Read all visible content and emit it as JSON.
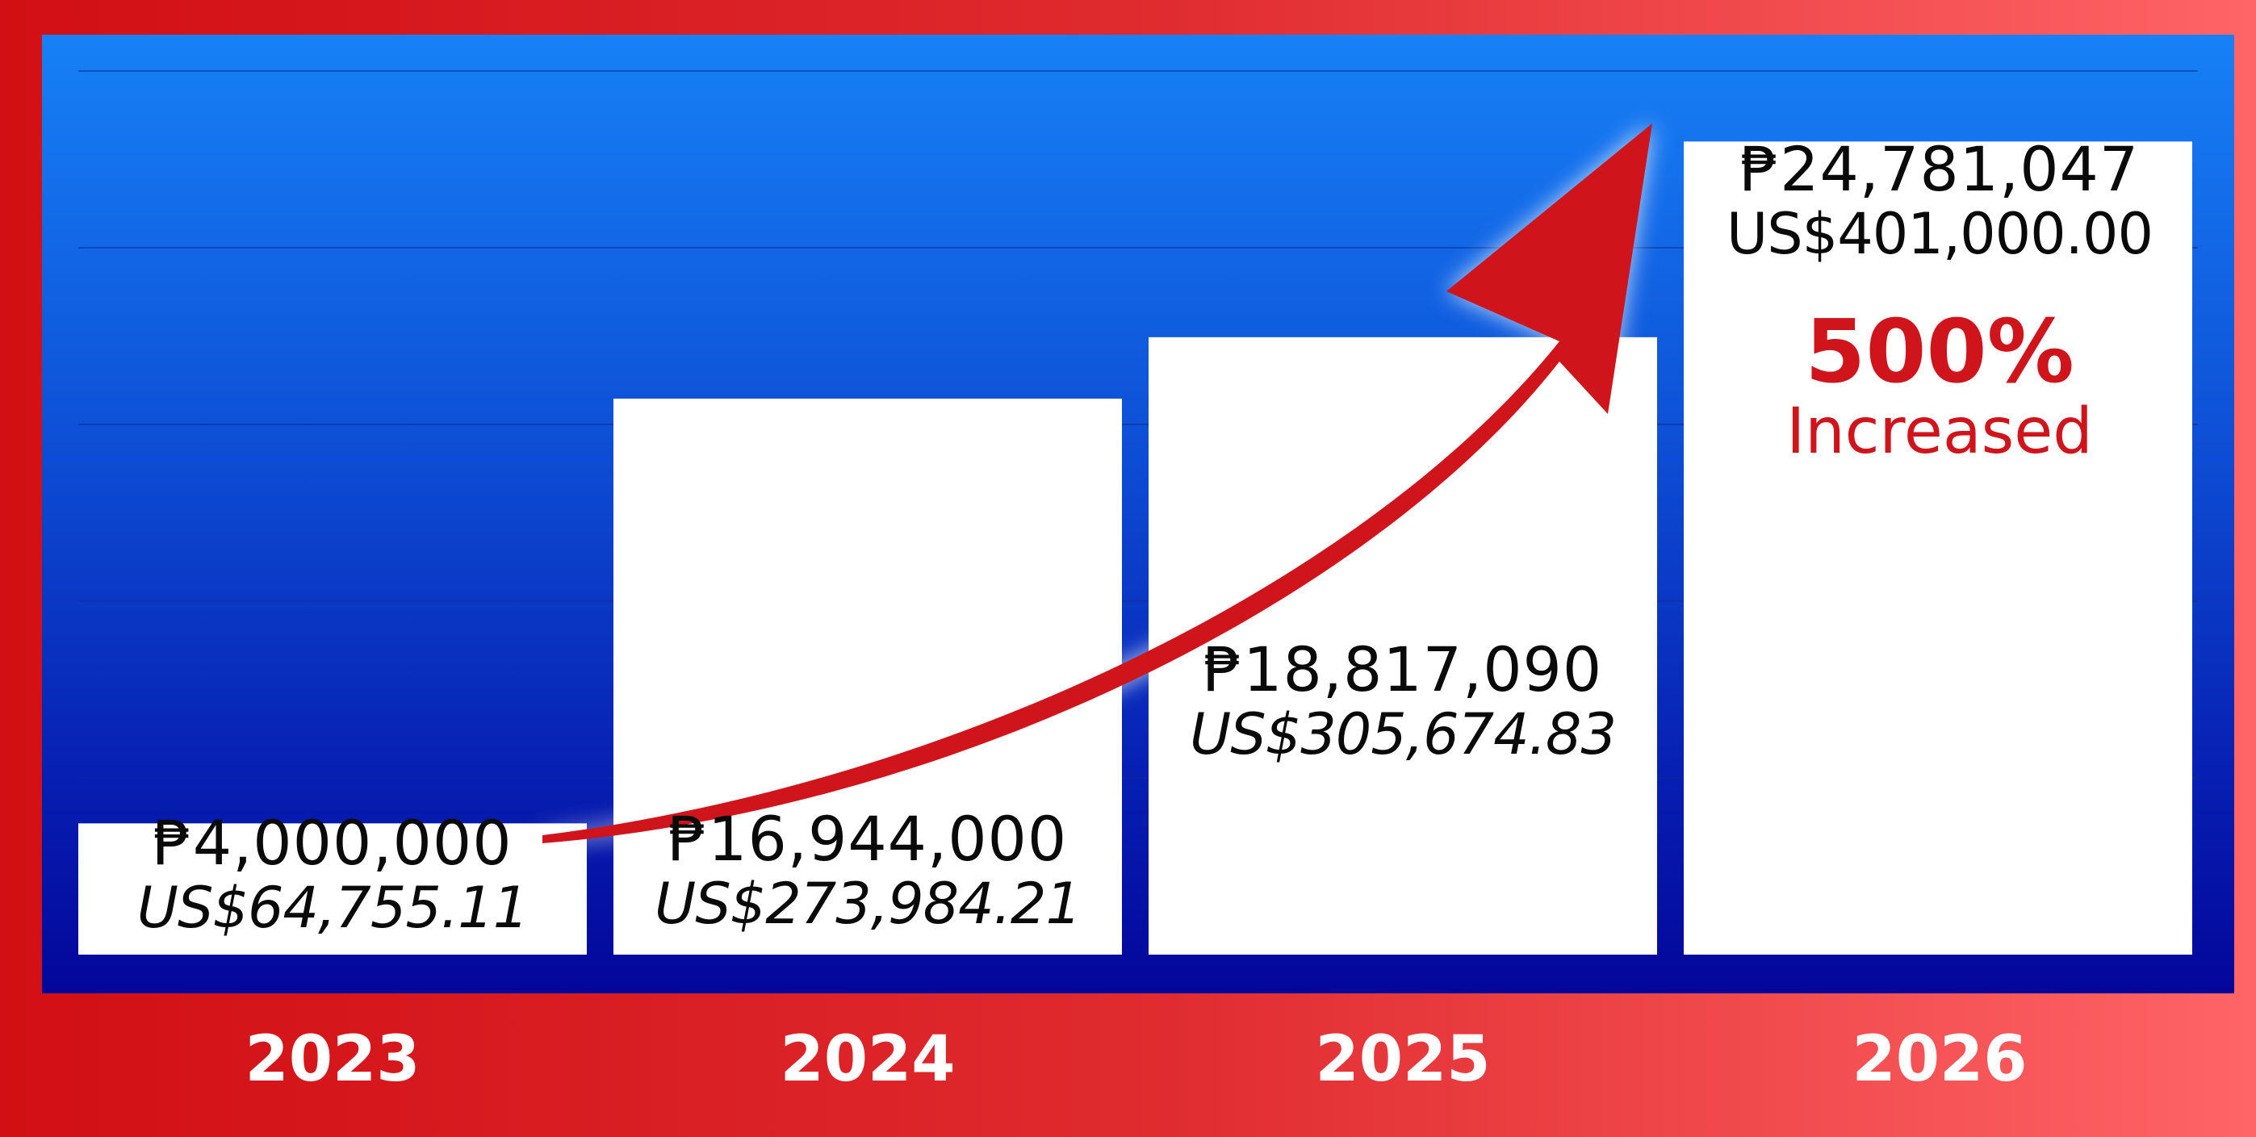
{
  "chart_data": {
    "type": "bar",
    "categories": [
      "2023",
      "2024",
      "2025",
      "2026"
    ],
    "series": [
      {
        "values": [
          4000000,
          16944000,
          18817090,
          24781047
        ]
      }
    ],
    "php_labels": [
      "₱4,000,000",
      "₱16,944,000",
      "₱18,817,090",
      "₱24,781,047"
    ],
    "usd_labels": [
      "US$64,755.11",
      "US$273,984.21",
      "US$305,674.83",
      "US$401,000.00"
    ],
    "ylim": [
      0,
      25700000
    ],
    "grid": true,
    "annotation": {
      "percent": "500%",
      "text": "Increased"
    }
  },
  "colors": {
    "frame": "#d10f14",
    "plot_top": "#1781f7",
    "plot_bottom": "#04069a",
    "bar": "#ffffff",
    "arrow": "#d0141b",
    "highlight_text": "#d0141b",
    "year_text": "#ffffff"
  }
}
